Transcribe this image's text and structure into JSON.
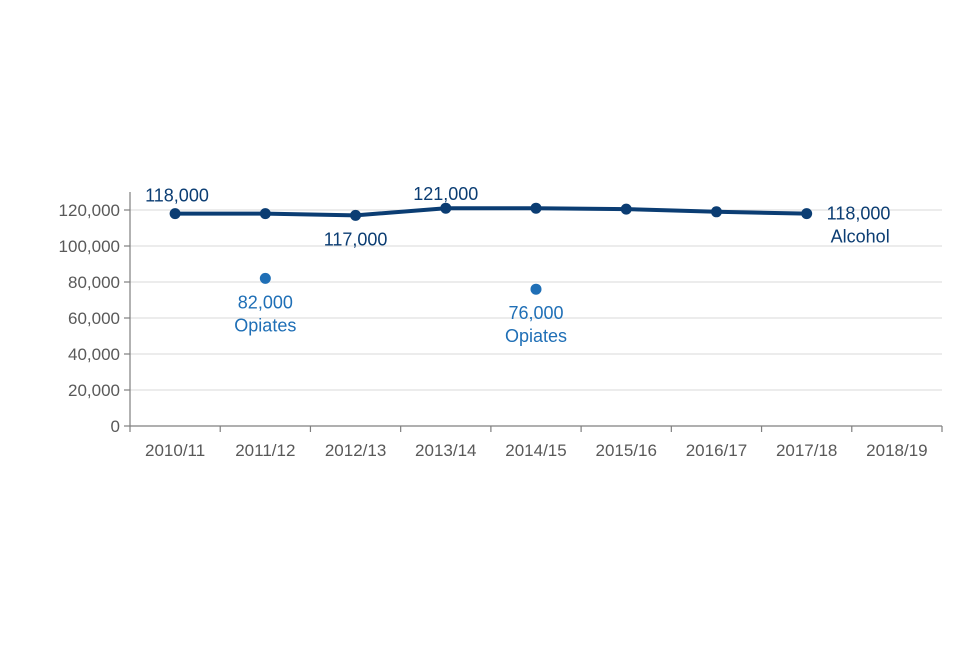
{
  "chart_data": {
    "type": "line",
    "title": "",
    "xlabel": "",
    "ylabel": "",
    "categories": [
      "2010/11",
      "2011/12",
      "2012/13",
      "2013/14",
      "2014/15",
      "2015/16",
      "2016/17",
      "2017/18",
      "2018/19"
    ],
    "y_ticks": [
      "0",
      "20,000",
      "40,000",
      "60,000",
      "80,000",
      "100,000",
      "120,000"
    ],
    "ylim": [
      0,
      130000
    ],
    "grid": true,
    "legend": "none",
    "colors": {
      "alcohol": "#0b3d73",
      "opiates": "#1f6fb6",
      "axis_text": "#595959",
      "grid": "#d9d9d9"
    },
    "series": [
      {
        "key": "alcohol",
        "values": [
          118000,
          118000,
          117000,
          121000,
          121000,
          120500,
          119000,
          118000,
          null
        ]
      },
      {
        "key": "opiates",
        "values": [
          null,
          82000,
          null,
          null,
          76000,
          null,
          null,
          null,
          null
        ]
      }
    ],
    "annotations": [
      {
        "series": "alcohol",
        "index": 0,
        "lines": [
          "118,000"
        ],
        "position": "above-right"
      },
      {
        "series": "alcohol",
        "index": 2,
        "lines": [
          "117,000"
        ],
        "position": "below"
      },
      {
        "series": "alcohol",
        "index": 3,
        "lines": [
          "121,000"
        ],
        "position": "above"
      },
      {
        "series": "alcohol",
        "index": 7,
        "lines": [
          "118,000",
          "Alcohol"
        ],
        "position": "right"
      },
      {
        "series": "opiates",
        "index": 1,
        "lines": [
          "82,000",
          "Opiates"
        ],
        "position": "below"
      },
      {
        "series": "opiates",
        "index": 4,
        "lines": [
          "76,000",
          "Opiates"
        ],
        "position": "below"
      }
    ]
  }
}
